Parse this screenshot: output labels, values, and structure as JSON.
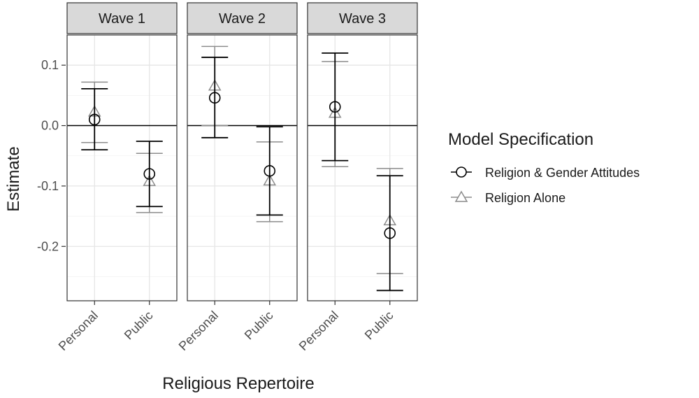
{
  "chart_data": {
    "type": "errorbar",
    "facets": [
      "Wave 1",
      "Wave 2",
      "Wave 3"
    ],
    "categories": [
      "Personal",
      "Public"
    ],
    "xlabel": "Religious Repertoire",
    "ylabel": "Estimate",
    "ylim": [
      -0.29,
      0.15
    ],
    "yticks": [
      0.1,
      0.0,
      -0.1,
      -0.2
    ],
    "ytick_labels": [
      "0.1",
      "0.0",
      "-0.1",
      "-0.2"
    ],
    "reference_line": 0,
    "grid": true,
    "legend": {
      "title": "Model Specification",
      "position": "right"
    },
    "series": [
      {
        "name": "Religion & Gender Attitudes",
        "marker": "circle",
        "color": "#000000",
        "points": [
          {
            "facet": "Wave 1",
            "category": "Personal",
            "estimate": 0.01,
            "lower": -0.04,
            "upper": 0.061
          },
          {
            "facet": "Wave 1",
            "category": "Public",
            "estimate": -0.08,
            "lower": -0.134,
            "upper": -0.026
          },
          {
            "facet": "Wave 2",
            "category": "Personal",
            "estimate": 0.046,
            "lower": -0.02,
            "upper": 0.113
          },
          {
            "facet": "Wave 2",
            "category": "Public",
            "estimate": -0.075,
            "lower": -0.148,
            "upper": -0.002
          },
          {
            "facet": "Wave 3",
            "category": "Personal",
            "estimate": 0.031,
            "lower": -0.058,
            "upper": 0.12
          },
          {
            "facet": "Wave 3",
            "category": "Public",
            "estimate": -0.178,
            "lower": -0.273,
            "upper": -0.083
          }
        ]
      },
      {
        "name": "Religion Alone",
        "marker": "triangle",
        "color": "#8c8c8c",
        "points": [
          {
            "facet": "Wave 1",
            "category": "Personal",
            "estimate": 0.022,
            "lower": -0.028,
            "upper": 0.072
          },
          {
            "facet": "Wave 1",
            "category": "Public",
            "estimate": -0.093,
            "lower": -0.144,
            "upper": -0.046
          },
          {
            "facet": "Wave 2",
            "category": "Personal",
            "estimate": 0.065,
            "lower": 0.0,
            "upper": 0.131
          },
          {
            "facet": "Wave 2",
            "category": "Public",
            "estimate": -0.092,
            "lower": -0.159,
            "upper": -0.027
          },
          {
            "facet": "Wave 3",
            "category": "Personal",
            "estimate": 0.02,
            "lower": -0.068,
            "upper": 0.106
          },
          {
            "facet": "Wave 3",
            "category": "Public",
            "estimate": -0.158,
            "lower": -0.245,
            "upper": -0.071
          }
        ]
      }
    ]
  }
}
